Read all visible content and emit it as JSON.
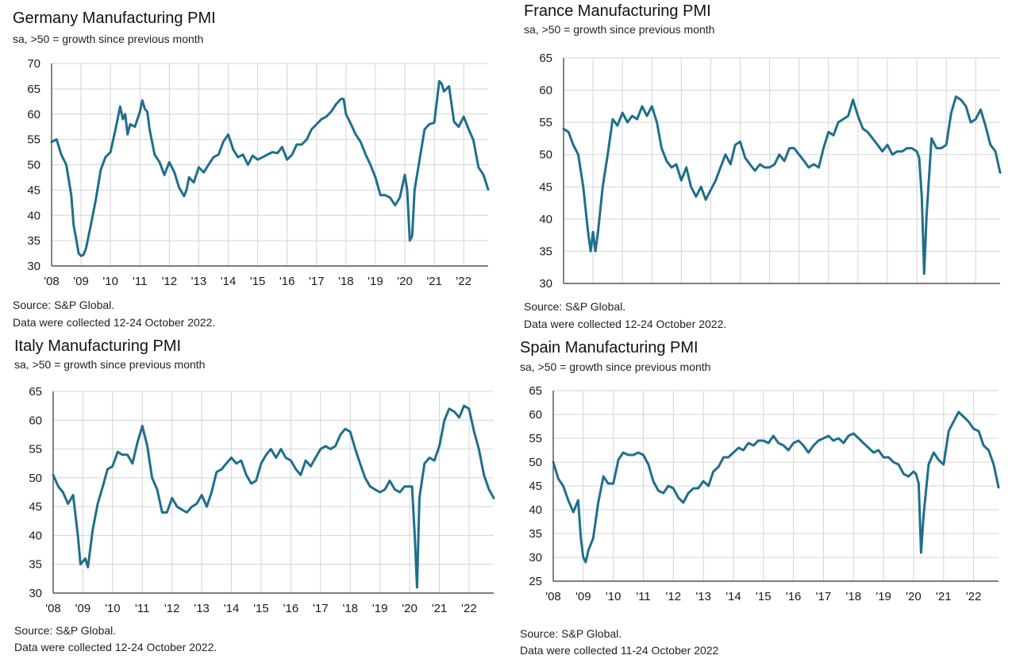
{
  "series_color": "#1f6f8b",
  "grid_color": "#d4d4d4",
  "chart_data": [
    {
      "type": "line",
      "title": "Germany Manufacturing PMI",
      "subtitle": "sa, >50 = growth since previous month",
      "source": "Source: S&P Global.",
      "note": "Data were collected 12-24 October 2022.",
      "ylim": [
        30,
        70
      ],
      "yticks": [
        "30",
        "35",
        "40",
        "45",
        "50",
        "55",
        "60",
        "65",
        "70"
      ],
      "xlim": [
        2008,
        2022.83
      ],
      "xticks": [
        "'08",
        "'09",
        "'10",
        "'11",
        "'12",
        "'13",
        "'14",
        "'15",
        "'16",
        "'17",
        "'18",
        "'19",
        "'20",
        "'21",
        "'22"
      ],
      "grid": true,
      "series": [
        {
          "x": [
            2008.0,
            2008.17,
            2008.33,
            2008.5,
            2008.67,
            2008.75,
            2008.83,
            2008.92,
            2009.0,
            2009.08,
            2009.17,
            2009.33,
            2009.5,
            2009.67,
            2009.83,
            2010.0,
            2010.17,
            2010.33,
            2010.42,
            2010.5,
            2010.58,
            2010.67,
            2010.83,
            2011.0,
            2011.08,
            2011.17,
            2011.25,
            2011.33,
            2011.5,
            2011.67,
            2011.83,
            2012.0,
            2012.17,
            2012.33,
            2012.5,
            2012.58,
            2012.67,
            2012.83,
            2013.0,
            2013.17,
            2013.33,
            2013.5,
            2013.67,
            2013.83,
            2014.0,
            2014.17,
            2014.33,
            2014.5,
            2014.67,
            2014.83,
            2015.0,
            2015.17,
            2015.33,
            2015.5,
            2015.67,
            2015.83,
            2016.0,
            2016.17,
            2016.33,
            2016.5,
            2016.67,
            2016.83,
            2017.0,
            2017.17,
            2017.33,
            2017.5,
            2017.67,
            2017.83,
            2017.92,
            2018.0,
            2018.17,
            2018.33,
            2018.5,
            2018.67,
            2018.83,
            2019.0,
            2019.17,
            2019.33,
            2019.5,
            2019.67,
            2019.83,
            2020.0,
            2020.08,
            2020.17,
            2020.25,
            2020.33,
            2020.5,
            2020.67,
            2020.83,
            2021.0,
            2021.17,
            2021.25,
            2021.33,
            2021.5,
            2021.67,
            2021.83,
            2022.0,
            2022.17,
            2022.33,
            2022.5,
            2022.67,
            2022.83
          ],
          "y": [
            54.5,
            55.0,
            52.0,
            50.0,
            44.0,
            38.0,
            35.5,
            32.5,
            32.0,
            32.2,
            33.5,
            38.0,
            43.0,
            49.0,
            51.5,
            52.5,
            57.0,
            61.5,
            59.0,
            60.0,
            56.0,
            58.0,
            57.5,
            60.5,
            62.7,
            61.0,
            60.5,
            57.0,
            52.0,
            50.5,
            48.0,
            50.5,
            48.5,
            45.5,
            43.8,
            45.0,
            47.5,
            46.5,
            49.5,
            48.5,
            50.0,
            51.5,
            52.0,
            54.5,
            56.0,
            53.0,
            51.5,
            52.0,
            50.0,
            51.8,
            51.0,
            51.5,
            52.0,
            52.5,
            52.3,
            53.5,
            51.0,
            52.0,
            54.0,
            54.0,
            55.0,
            57.0,
            58.0,
            59.0,
            59.5,
            60.5,
            62.0,
            63.0,
            63.0,
            60.0,
            58.0,
            56.0,
            54.5,
            52.0,
            50.0,
            47.5,
            44.0,
            44.0,
            43.5,
            42.0,
            43.5,
            48.0,
            45.0,
            35.0,
            36.0,
            45.0,
            51.0,
            57.0,
            58.0,
            58.3,
            66.5,
            66.0,
            64.5,
            65.5,
            58.5,
            57.5,
            59.5,
            57.0,
            54.8,
            49.5,
            48.0,
            45.1
          ]
        }
      ]
    },
    {
      "type": "line",
      "title": "France Manufacturing PMI",
      "subtitle": "sa, >50 = growth since previous month",
      "source": "Source: S&P Global.",
      "note": "Data were collected 12-24 October 2022.",
      "ylim": [
        30,
        65
      ],
      "yticks": [
        "30",
        "35",
        "40",
        "45",
        "50",
        "55",
        "60",
        "65"
      ],
      "xlim": [
        2008,
        2022.83
      ],
      "xticks": [],
      "grid": true,
      "series": [
        {
          "x": [
            2008.0,
            2008.17,
            2008.33,
            2008.5,
            2008.67,
            2008.83,
            2008.92,
            2009.0,
            2009.08,
            2009.17,
            2009.33,
            2009.5,
            2009.67,
            2009.83,
            2010.0,
            2010.17,
            2010.33,
            2010.5,
            2010.67,
            2010.83,
            2011.0,
            2011.17,
            2011.33,
            2011.5,
            2011.67,
            2011.83,
            2012.0,
            2012.17,
            2012.33,
            2012.5,
            2012.67,
            2012.83,
            2013.0,
            2013.17,
            2013.33,
            2013.5,
            2013.67,
            2013.83,
            2014.0,
            2014.17,
            2014.33,
            2014.5,
            2014.67,
            2014.83,
            2015.0,
            2015.17,
            2015.33,
            2015.5,
            2015.67,
            2015.83,
            2016.0,
            2016.17,
            2016.33,
            2016.5,
            2016.67,
            2016.83,
            2017.0,
            2017.17,
            2017.33,
            2017.5,
            2017.67,
            2017.83,
            2018.0,
            2018.17,
            2018.33,
            2018.5,
            2018.67,
            2018.83,
            2019.0,
            2019.17,
            2019.33,
            2019.5,
            2019.67,
            2019.83,
            2020.0,
            2020.08,
            2020.17,
            2020.25,
            2020.33,
            2020.5,
            2020.67,
            2020.83,
            2021.0,
            2021.17,
            2021.33,
            2021.5,
            2021.67,
            2021.83,
            2022.0,
            2022.17,
            2022.33,
            2022.5,
            2022.67,
            2022.83
          ],
          "y": [
            54.0,
            53.5,
            51.5,
            50.0,
            45.0,
            38.0,
            35.0,
            38.0,
            35.0,
            38.0,
            45.0,
            50.0,
            55.5,
            54.5,
            56.5,
            55.0,
            56.0,
            55.5,
            57.5,
            56.0,
            57.5,
            55.0,
            51.0,
            49.0,
            48.0,
            48.5,
            46.0,
            48.0,
            45.0,
            43.5,
            45.0,
            43.0,
            44.5,
            46.0,
            48.0,
            50.0,
            48.5,
            51.5,
            52.0,
            49.5,
            48.5,
            47.5,
            48.5,
            48.0,
            48.0,
            48.5,
            50.0,
            49.0,
            51.0,
            51.0,
            50.0,
            49.0,
            48.0,
            48.5,
            48.0,
            51.0,
            53.5,
            53.0,
            55.0,
            55.5,
            56.0,
            58.5,
            56.0,
            54.0,
            53.5,
            52.5,
            51.5,
            50.5,
            51.5,
            50.0,
            50.5,
            50.5,
            51.0,
            51.0,
            50.5,
            49.5,
            43.5,
            31.5,
            40.5,
            52.5,
            51.0,
            51.0,
            51.5,
            56.5,
            59.0,
            58.5,
            57.5,
            55.0,
            55.5,
            57.0,
            54.5,
            51.5,
            50.5,
            47.2
          ]
        }
      ]
    },
    {
      "type": "line",
      "title": "Italy Manufacturing PMI",
      "subtitle": "sa, >50 = growth since previous month",
      "source": "Source: S&P Global.",
      "note": "Data were collected 12-24 October 2022.",
      "ylim": [
        30,
        65
      ],
      "yticks": [
        "30",
        "35",
        "40",
        "45",
        "50",
        "55",
        "60",
        "65"
      ],
      "xlim": [
        2008,
        2022.83
      ],
      "xticks": [
        "'08",
        "'09",
        "'10",
        "'11",
        "'12",
        "'13",
        "'14",
        "'15",
        "'16",
        "'17",
        "'18",
        "'19",
        "'20",
        "'21",
        "'22"
      ],
      "grid": true,
      "series": [
        {
          "x": [
            2008.0,
            2008.17,
            2008.33,
            2008.5,
            2008.67,
            2008.83,
            2008.92,
            2009.0,
            2009.08,
            2009.17,
            2009.33,
            2009.5,
            2009.67,
            2009.83,
            2010.0,
            2010.17,
            2010.33,
            2010.5,
            2010.67,
            2010.83,
            2011.0,
            2011.17,
            2011.33,
            2011.5,
            2011.67,
            2011.83,
            2012.0,
            2012.17,
            2012.33,
            2012.5,
            2012.67,
            2012.83,
            2013.0,
            2013.17,
            2013.33,
            2013.5,
            2013.67,
            2013.83,
            2014.0,
            2014.17,
            2014.33,
            2014.5,
            2014.67,
            2014.83,
            2015.0,
            2015.17,
            2015.33,
            2015.5,
            2015.67,
            2015.83,
            2016.0,
            2016.17,
            2016.33,
            2016.5,
            2016.67,
            2016.83,
            2017.0,
            2017.17,
            2017.33,
            2017.5,
            2017.67,
            2017.83,
            2018.0,
            2018.17,
            2018.33,
            2018.5,
            2018.67,
            2018.83,
            2019.0,
            2019.17,
            2019.33,
            2019.5,
            2019.67,
            2019.83,
            2020.0,
            2020.08,
            2020.17,
            2020.25,
            2020.33,
            2020.5,
            2020.67,
            2020.83,
            2021.0,
            2021.17,
            2021.33,
            2021.5,
            2021.67,
            2021.83,
            2022.0,
            2022.17,
            2022.33,
            2022.5,
            2022.67,
            2022.83
          ],
          "y": [
            50.5,
            48.5,
            47.5,
            45.5,
            47.0,
            40.0,
            35.0,
            35.5,
            36.0,
            34.5,
            41.0,
            45.5,
            48.5,
            51.5,
            52.0,
            54.5,
            54.0,
            54.0,
            52.5,
            56.0,
            59.0,
            55.5,
            50.0,
            48.0,
            44.0,
            44.0,
            46.5,
            45.0,
            44.5,
            44.0,
            45.0,
            45.5,
            47.0,
            45.0,
            47.5,
            51.0,
            51.5,
            52.5,
            53.5,
            52.5,
            53.0,
            50.5,
            49.0,
            49.5,
            52.5,
            54.0,
            55.0,
            53.5,
            55.0,
            53.5,
            53.0,
            51.5,
            50.5,
            53.0,
            52.0,
            53.5,
            55.0,
            55.5,
            55.0,
            55.5,
            57.5,
            58.5,
            58.0,
            55.0,
            52.5,
            50.0,
            48.5,
            48.0,
            47.5,
            48.0,
            49.5,
            48.0,
            47.5,
            48.5,
            48.5,
            48.5,
            40.0,
            31.0,
            46.5,
            52.5,
            53.5,
            53.0,
            55.5,
            60.0,
            62.0,
            61.5,
            60.5,
            62.5,
            62.0,
            58.0,
            55.0,
            50.5,
            48.0,
            46.5
          ]
        }
      ]
    },
    {
      "type": "line",
      "title": "Spain Manufacturing PMI",
      "subtitle": "sa, >50 = growth since previous month",
      "source": "Source: S&P Global.",
      "note": "Data were collected 11-24 October 2022",
      "ylim": [
        25,
        65
      ],
      "yticks": [
        "25",
        "30",
        "35",
        "40",
        "45",
        "50",
        "55",
        "60",
        "65"
      ],
      "xlim": [
        2008,
        2022.83
      ],
      "xticks": [
        "'08",
        "'09",
        "'10",
        "'11",
        "'12",
        "'13",
        "'14",
        "'15",
        "'16",
        "'17",
        "'18",
        "'19",
        "'20",
        "'21",
        "'22"
      ],
      "grid": true,
      "series": [
        {
          "x": [
            2008.0,
            2008.17,
            2008.33,
            2008.5,
            2008.67,
            2008.83,
            2008.92,
            2009.0,
            2009.08,
            2009.17,
            2009.33,
            2009.5,
            2009.67,
            2009.83,
            2010.0,
            2010.17,
            2010.33,
            2010.5,
            2010.67,
            2010.83,
            2011.0,
            2011.17,
            2011.33,
            2011.5,
            2011.67,
            2011.83,
            2012.0,
            2012.17,
            2012.33,
            2012.5,
            2012.67,
            2012.83,
            2013.0,
            2013.17,
            2013.33,
            2013.5,
            2013.67,
            2013.83,
            2014.0,
            2014.17,
            2014.33,
            2014.5,
            2014.67,
            2014.83,
            2015.0,
            2015.17,
            2015.33,
            2015.5,
            2015.67,
            2015.83,
            2016.0,
            2016.17,
            2016.33,
            2016.5,
            2016.67,
            2016.83,
            2017.0,
            2017.17,
            2017.33,
            2017.5,
            2017.67,
            2017.83,
            2018.0,
            2018.17,
            2018.33,
            2018.5,
            2018.67,
            2018.83,
            2019.0,
            2019.17,
            2019.33,
            2019.5,
            2019.67,
            2019.83,
            2020.0,
            2020.08,
            2020.17,
            2020.25,
            2020.33,
            2020.5,
            2020.67,
            2020.83,
            2021.0,
            2021.17,
            2021.33,
            2021.5,
            2021.67,
            2021.83,
            2022.0,
            2022.17,
            2022.33,
            2022.5,
            2022.67,
            2022.83
          ],
          "y": [
            50.0,
            46.5,
            45.0,
            42.0,
            39.5,
            42.0,
            34.0,
            30.0,
            29.0,
            31.5,
            34.0,
            41.5,
            47.0,
            45.5,
            45.5,
            50.5,
            52.0,
            51.5,
            51.5,
            52.0,
            51.5,
            49.5,
            46.0,
            44.0,
            43.5,
            45.0,
            44.5,
            42.5,
            41.5,
            43.5,
            44.5,
            44.5,
            46.0,
            45.0,
            48.0,
            49.0,
            51.0,
            51.0,
            52.0,
            53.0,
            52.5,
            54.0,
            53.5,
            54.5,
            54.5,
            54.0,
            55.5,
            54.0,
            53.5,
            52.5,
            54.0,
            54.5,
            53.5,
            52.0,
            53.5,
            54.5,
            55.0,
            55.5,
            54.5,
            55.0,
            54.0,
            55.5,
            56.0,
            55.0,
            54.0,
            53.0,
            52.0,
            52.5,
            51.0,
            51.0,
            50.0,
            49.5,
            47.5,
            47.0,
            48.0,
            47.5,
            45.5,
            31.0,
            38.5,
            49.5,
            52.0,
            50.5,
            49.5,
            56.5,
            58.5,
            60.5,
            59.5,
            58.5,
            57.0,
            56.5,
            53.5,
            52.5,
            49.5,
            44.7
          ]
        }
      ]
    }
  ]
}
